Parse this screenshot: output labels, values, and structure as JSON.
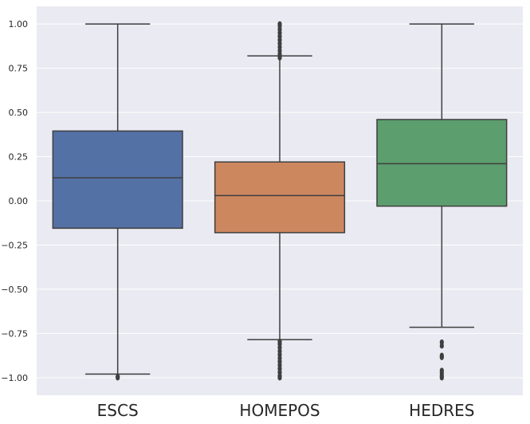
{
  "chart_data": {
    "type": "box",
    "categories": [
      "ESCS",
      "HOMEPOS",
      "HEDRES"
    ],
    "ylim": [
      -1.1,
      1.1
    ],
    "yticks": [
      -1.0,
      -0.75,
      -0.5,
      -0.25,
      0.0,
      0.25,
      0.5,
      0.75,
      1.0
    ],
    "ytick_labels": [
      "−1.00",
      "−0.75",
      "−0.50",
      "−0.25",
      "0.00",
      "0.25",
      "0.50",
      "0.75",
      "1.00"
    ],
    "grid": true,
    "colors": {
      "background": "#eaeaf2",
      "grid": "#ffffff",
      "line": "#3f3f3f"
    },
    "boxes": [
      {
        "category": "ESCS",
        "color": "#5471a6",
        "whisker_low": -0.98,
        "q1": -0.155,
        "median": 0.13,
        "q3": 0.395,
        "whisker_high": 1.0,
        "outliers": [
          -0.995,
          -1.0
        ]
      },
      {
        "category": "HOMEPOS",
        "color": "#cd875f",
        "whisker_low": -0.785,
        "q1": -0.18,
        "median": 0.03,
        "q3": 0.22,
        "whisker_high": 0.82,
        "outliers": [
          0.81,
          0.83,
          0.85,
          0.87,
          0.89,
          0.91,
          0.93,
          0.95,
          0.97,
          0.99,
          1.0,
          -0.795,
          -0.81,
          -0.83,
          -0.85,
          -0.87,
          -0.89,
          -0.91,
          -0.93,
          -0.95,
          -0.97,
          -0.99,
          -1.0
        ]
      },
      {
        "category": "HEDRES",
        "color": "#5c9e6e",
        "whisker_low": -0.715,
        "q1": -0.03,
        "median": 0.21,
        "q3": 0.46,
        "whisker_high": 1.0,
        "outliers": [
          -0.8,
          -0.82,
          -0.875,
          -0.885,
          -0.96,
          -0.975,
          -0.99,
          -1.0
        ]
      }
    ]
  }
}
